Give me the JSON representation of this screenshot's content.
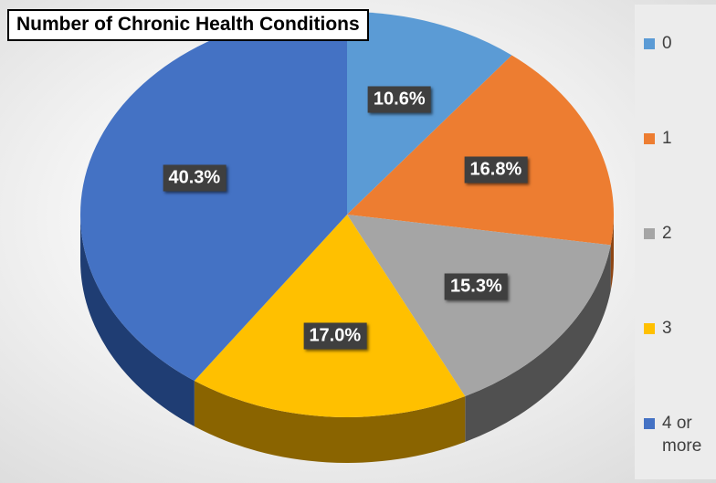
{
  "chart_data": {
    "type": "pie",
    "title": "Number of Chronic Health Conditions",
    "categories": [
      "0",
      "1",
      "2",
      "3",
      "4 or more"
    ],
    "values": [
      10.6,
      16.8,
      15.3,
      17.0,
      40.3
    ],
    "labels": [
      "10.6%",
      "16.8%",
      "15.3%",
      "17.0%",
      "40.3%"
    ],
    "colors": [
      "#5B9BD5",
      "#ED7D31",
      "#A5A5A5",
      "#FFC000",
      "#4472C4"
    ],
    "side_colors": [
      "#2E5F8E",
      "#8E4614",
      "#505050",
      "#8A6400",
      "#1F3D73"
    ],
    "legend_position": "right",
    "style": "3d"
  }
}
